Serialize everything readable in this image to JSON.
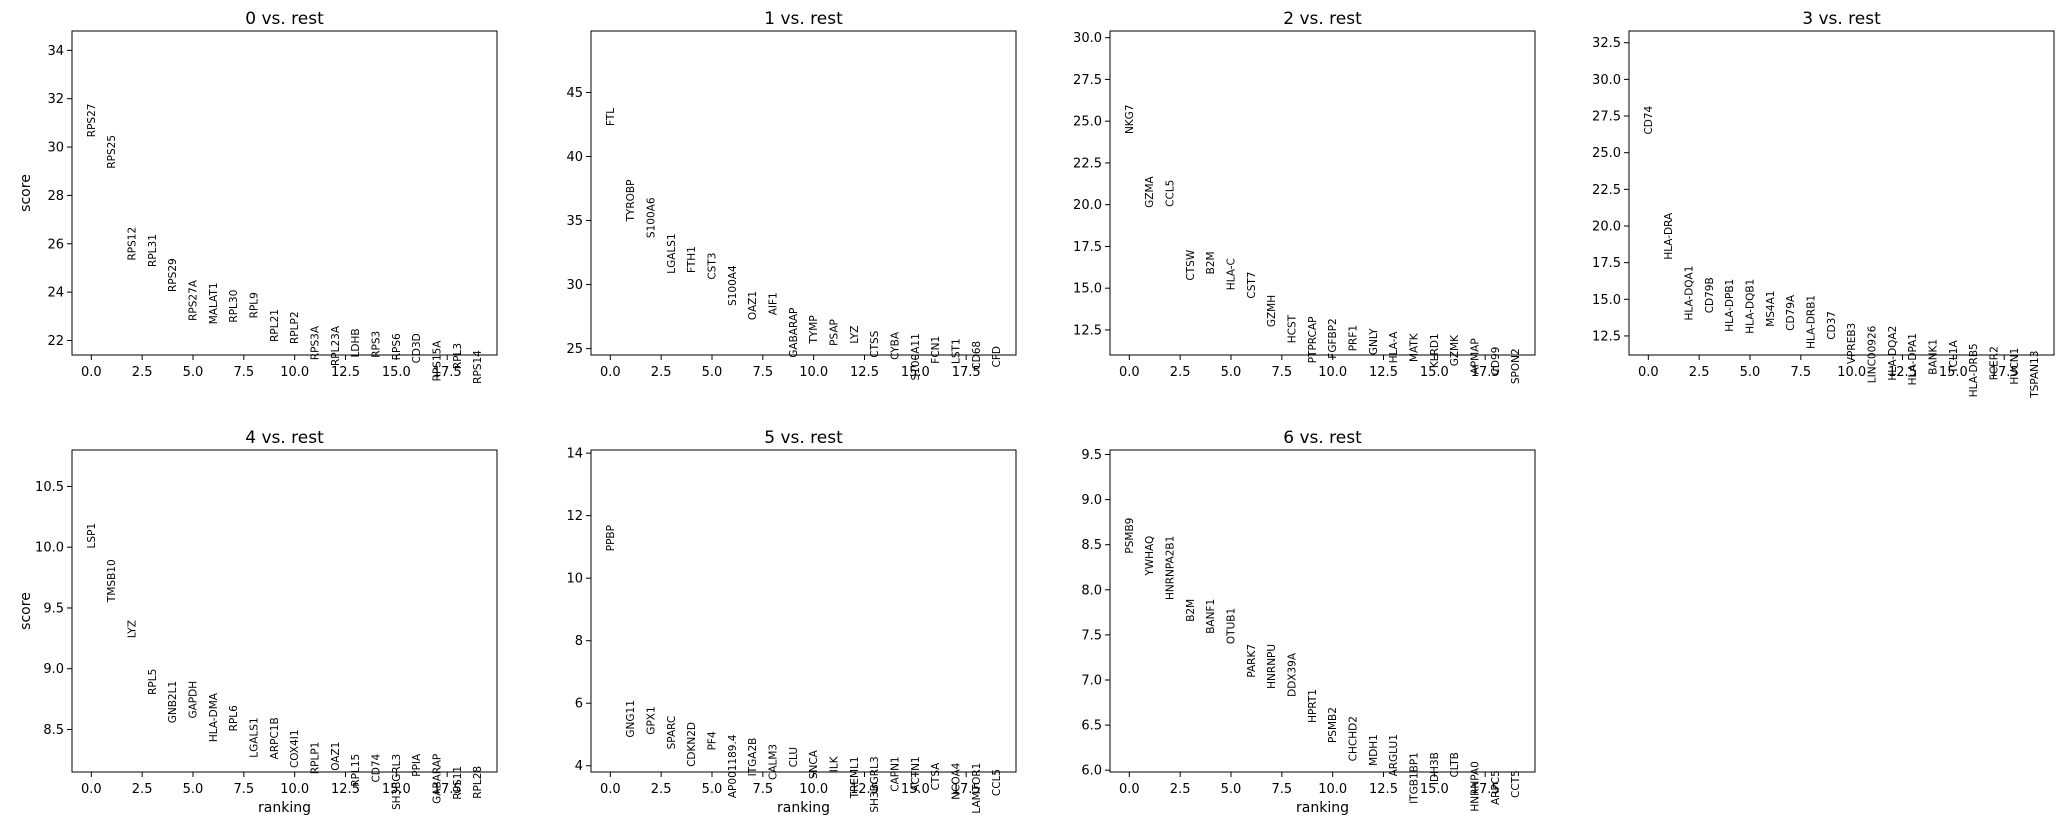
{
  "chart_data": [
    {
      "type": "scatter",
      "title": "0 vs. rest",
      "xlabel": "",
      "ylabel": "score",
      "xlim": [
        -0.95,
        19.95
      ],
      "ylim": [
        21.4,
        34.8
      ],
      "xticks": [
        0,
        2.5,
        5,
        7.5,
        10,
        12.5,
        15,
        17.5
      ],
      "xtick_labels": [
        "0.0",
        "2.5",
        "5.0",
        "7.5",
        "10.0",
        "12.5",
        "15.0",
        "17.5"
      ],
      "yticks": [
        22,
        24,
        26,
        28,
        30,
        32,
        34
      ],
      "ytick_labels": [
        "22",
        "24",
        "26",
        "28",
        "30",
        "32",
        "34"
      ],
      "genes": [
        "RPS27",
        "RPS25",
        "RPS12",
        "RPL31",
        "RPS29",
        "RPS27A",
        "MALAT1",
        "RPL30",
        "RPL9",
        "RPL21",
        "RPLP2",
        "RPS3A",
        "RPL23A",
        "LDHB",
        "RPS3",
        "RPS6",
        "CD3D",
        "RPS15A",
        "RPL3",
        "RPS14"
      ],
      "scores": [
        31.8,
        30.5,
        26.7,
        26.4,
        25.4,
        24.5,
        24.4,
        24.1,
        24.0,
        23.3,
        23.2,
        22.6,
        22.6,
        22.5,
        22.4,
        22.3,
        22.3,
        22.0,
        21.9,
        21.6
      ]
    },
    {
      "type": "scatter",
      "title": "1 vs. rest",
      "xlabel": "",
      "ylabel": "",
      "xlim": [
        -0.95,
        19.95
      ],
      "ylim": [
        24.5,
        49.8
      ],
      "xticks": [
        0,
        2.5,
        5,
        7.5,
        10,
        12.5,
        15,
        17.5
      ],
      "xtick_labels": [
        "0.0",
        "2.5",
        "5.0",
        "7.5",
        "10.0",
        "12.5",
        "15.0",
        "17.5"
      ],
      "yticks": [
        25,
        30,
        35,
        40,
        45
      ],
      "ytick_labels": [
        "25",
        "30",
        "35",
        "40",
        "45"
      ],
      "genes": [
        "FTL",
        "TYROBP",
        "S100A6",
        "LGALS1",
        "FTH1",
        "CST3",
        "S100A4",
        "OAZ1",
        "AIF1",
        "GABARAP",
        "TYMP",
        "PSAP",
        "LYZ",
        "CTSS",
        "CYBA",
        "S100A11",
        "FCN1",
        "LST1",
        "CD68",
        "CFD"
      ],
      "scores": [
        43.8,
        38.2,
        36.8,
        34.0,
        33.0,
        32.5,
        31.5,
        29.5,
        29.4,
        28.2,
        27.6,
        27.3,
        26.8,
        26.4,
        26.3,
        26.2,
        26.0,
        25.8,
        25.6,
        25.2
      ]
    },
    {
      "type": "scatter",
      "title": "2 vs. rest",
      "xlabel": "",
      "ylabel": "",
      "xlim": [
        -0.95,
        19.95
      ],
      "ylim": [
        11.0,
        30.4
      ],
      "xticks": [
        0,
        2.5,
        5,
        7.5,
        10,
        12.5,
        15,
        17.5
      ],
      "xtick_labels": [
        "0.0",
        "2.5",
        "5.0",
        "7.5",
        "10.0",
        "12.5",
        "15.0",
        "17.5"
      ],
      "yticks": [
        12.5,
        15,
        17.5,
        20,
        22.5,
        25,
        27.5,
        30
      ],
      "ytick_labels": [
        "12.5",
        "15.0",
        "17.5",
        "20.0",
        "22.5",
        "25.0",
        "27.5",
        "30.0"
      ],
      "genes": [
        "NKG7",
        "GZMA",
        "CCL5",
        "CTSW",
        "B2M",
        "HLA-C",
        "CST7",
        "GZMH",
        "HCST",
        "PTPRCAP",
        "FGFBP2",
        "PRF1",
        "GNLY",
        "HLA-A",
        "MATK",
        "KLRD1",
        "GZMK",
        "APMAP",
        "CD99",
        "SPON2"
      ],
      "scores": [
        26.0,
        21.7,
        21.5,
        17.3,
        17.2,
        16.8,
        16.0,
        14.6,
        13.4,
        13.3,
        13.2,
        12.8,
        12.6,
        12.4,
        12.3,
        12.3,
        12.2,
        12.0,
        11.5,
        11.4
      ]
    },
    {
      "type": "scatter",
      "title": "3 vs. rest",
      "xlabel": "",
      "ylabel": "",
      "xlim": [
        -0.95,
        19.95
      ],
      "ylim": [
        11.2,
        33.3
      ],
      "xticks": [
        0,
        2.5,
        5,
        7.5,
        10,
        12.5,
        15,
        17.5
      ],
      "xtick_labels": [
        "0.0",
        "2.5",
        "5.0",
        "7.5",
        "10.0",
        "12.5",
        "15.0",
        "17.5"
      ],
      "yticks": [
        12.5,
        15,
        17.5,
        20,
        22.5,
        25,
        27.5,
        30,
        32.5
      ],
      "ytick_labels": [
        "12.5",
        "15.0",
        "17.5",
        "20.0",
        "22.5",
        "25.0",
        "27.5",
        "30.0",
        "32.5"
      ],
      "genes": [
        "CD74",
        "HLA-DRA",
        "HLA-DQA1",
        "CD79B",
        "HLA-DPB1",
        "HLA-DQB1",
        "MS4A1",
        "CD79A",
        "HLA-DRB1",
        "CD37",
        "VPREB3",
        "LINC00926",
        "HLA-DQA2",
        "HLA-DPA1",
        "BANK1",
        "TCL1A",
        "HLA-DRB5",
        "FCER2",
        "HVCN1",
        "TSPAN13"
      ],
      "scores": [
        28.2,
        20.9,
        17.3,
        16.5,
        16.4,
        16.4,
        15.6,
        15.3,
        15.3,
        14.2,
        13.4,
        13.2,
        13.2,
        12.7,
        12.3,
        12.2,
        12.0,
        11.8,
        11.7,
        11.5
      ]
    },
    {
      "type": "scatter",
      "title": "4 vs. rest",
      "xlabel": "ranking",
      "ylabel": "score",
      "xlim": [
        -0.95,
        19.95
      ],
      "ylim": [
        8.15,
        10.8
      ],
      "xticks": [
        0,
        2.5,
        5,
        7.5,
        10,
        12.5,
        15,
        17.5
      ],
      "xtick_labels": [
        "0.0",
        "2.5",
        "5.0",
        "7.5",
        "10.0",
        "12.5",
        "15.0",
        "17.5"
      ],
      "yticks": [
        8.5,
        9.0,
        9.5,
        10.0,
        10.5
      ],
      "ytick_labels": [
        "8.5",
        "9.0",
        "9.5",
        "10.0",
        "10.5"
      ],
      "genes": [
        "LSP1",
        "TMSB10",
        "LYZ",
        "RPL5",
        "GNB2L1",
        "GAPDH",
        "HLA-DMA",
        "RPL6",
        "LGALS1",
        "ARPC1B",
        "COX4I1",
        "RPLP1",
        "OAZ1",
        "RPL15",
        "CD74",
        "SH3BGRL3",
        "PPIA",
        "GABARAP",
        "RPS11",
        "RPL28"
      ],
      "scores": [
        10.2,
        9.9,
        9.4,
        9.0,
        8.9,
        8.9,
        8.8,
        8.7,
        8.6,
        8.6,
        8.5,
        8.4,
        8.4,
        8.3,
        8.3,
        8.3,
        8.3,
        8.3,
        8.2,
        8.2
      ]
    },
    {
      "type": "scatter",
      "title": "5 vs. rest",
      "xlabel": "ranking",
      "ylabel": "",
      "xlim": [
        -0.95,
        19.95
      ],
      "ylim": [
        3.8,
        14.1
      ],
      "xticks": [
        0,
        2.5,
        5,
        7.5,
        10,
        12.5,
        15,
        17.5
      ],
      "xtick_labels": [
        "0.0",
        "2.5",
        "5.0",
        "7.5",
        "10.0",
        "12.5",
        "15.0",
        "17.5"
      ],
      "yticks": [
        4,
        6,
        8,
        10,
        12,
        14
      ],
      "ytick_labels": [
        "4",
        "6",
        "8",
        "10",
        "12",
        "14"
      ],
      "genes": [
        "PPBP",
        "GNG11",
        "GPX1",
        "SPARC",
        "CDKN2D",
        "PF4",
        "AP001189.4",
        "ITGA2B",
        "CALM3",
        "CLU",
        "SNCA",
        "ILK",
        "TREML1",
        "SH3BGRL3",
        "CAPN1",
        "ACTN1",
        "CTSA",
        "NCOA4",
        "LAMTOR1",
        "CCL5"
      ],
      "scores": [
        11.7,
        6.1,
        5.9,
        5.6,
        5.4,
        5.1,
        5.0,
        4.9,
        4.7,
        4.6,
        4.5,
        4.3,
        4.3,
        4.3,
        4.3,
        4.3,
        4.1,
        4.1,
        4.1,
        3.9
      ]
    },
    {
      "type": "scatter",
      "title": "6 vs. rest",
      "xlabel": "ranking",
      "ylabel": "",
      "xlim": [
        -0.95,
        19.95
      ],
      "ylim": [
        5.98,
        9.55
      ],
      "xticks": [
        0,
        2.5,
        5,
        7.5,
        10,
        12.5,
        15,
        17.5
      ],
      "xtick_labels": [
        "0.0",
        "2.5",
        "5.0",
        "7.5",
        "10.0",
        "12.5",
        "15.0",
        "17.5"
      ],
      "yticks": [
        6.0,
        6.5,
        7.0,
        7.5,
        8.0,
        8.5,
        9.0,
        9.5
      ],
      "ytick_labels": [
        "6.0",
        "6.5",
        "7.0",
        "7.5",
        "8.0",
        "8.5",
        "9.0",
        "9.5"
      ],
      "genes": [
        "PSMB9",
        "YWHAQ",
        "HNRNPA2B1",
        "B2M",
        "BANF1",
        "OTUB1",
        "PARK7",
        "HNRNPU",
        "DDX39A",
        "HPRT1",
        "PSMB2",
        "CHCHD2",
        "MDH1",
        "ARGLU1",
        "ITGB1BP1",
        "IDH3B",
        "CLTB",
        "HNRNPA0",
        "ARPC5",
        "CCT5"
      ],
      "scores": [
        8.8,
        8.6,
        8.6,
        7.9,
        7.9,
        7.8,
        7.4,
        7.4,
        7.3,
        6.9,
        6.7,
        6.6,
        6.4,
        6.4,
        6.2,
        6.2,
        6.2,
        6.1,
        6.0,
        6.0
      ]
    }
  ]
}
